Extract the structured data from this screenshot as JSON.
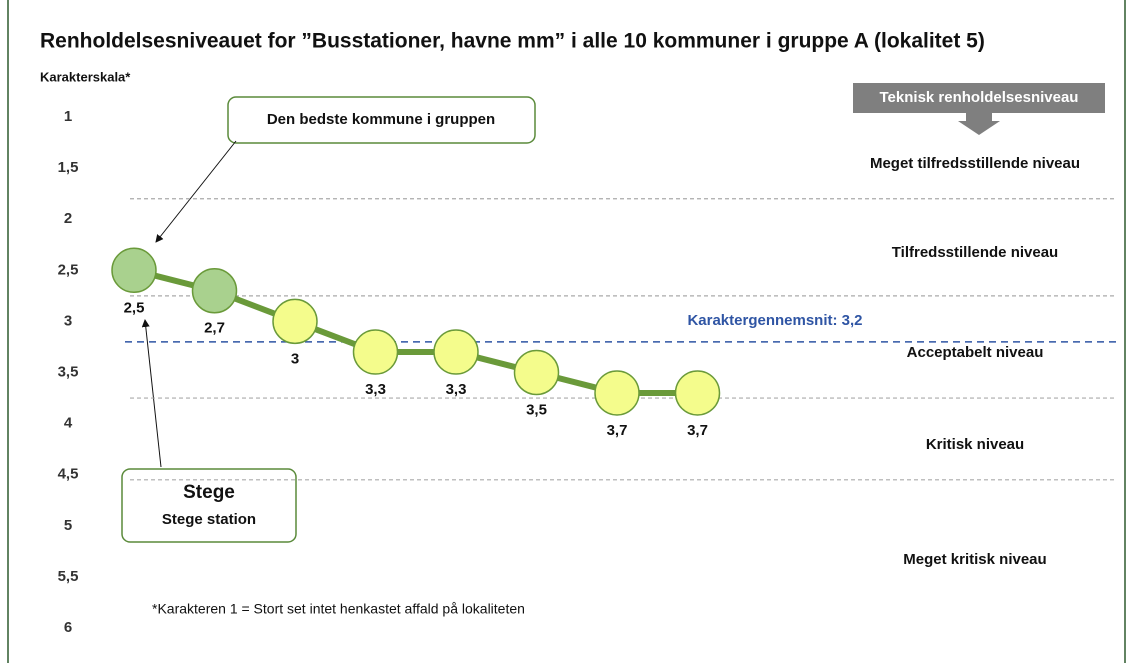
{
  "chart_data": {
    "type": "line",
    "title": "Renholdelsesniveauet for ”Busstationer, havne mm” i alle 10 kommuner i gruppe A (lokalitet 5)",
    "y_label": "Karakterskala*",
    "footnote": "*Karakteren 1 = Stort set intet henkastet affald på lokaliteten",
    "ylim": [
      1,
      6
    ],
    "y_inverted": true,
    "yticks": [
      1,
      {
        "value": 1.5,
        "label": "1,5"
      },
      2,
      {
        "value": 2.5,
        "label": "2,5"
      },
      3,
      {
        "value": 3.5,
        "label": "3,5"
      },
      4,
      {
        "value": 4.5,
        "label": "4,5"
      },
      5,
      {
        "value": 5.5,
        "label": "5,5"
      },
      6
    ],
    "categories": [
      null,
      null,
      null,
      null,
      null,
      null,
      null,
      null
    ],
    "series": [
      {
        "color": "#6a9a3a",
        "marker_colors": [
          "#a9d18e",
          "#a9d18e",
          "#f4fc8c",
          "#f4fc8c",
          "#f4fc8c",
          "#f4fc8c",
          "#f4fc8c",
          "#f4fc8c"
        ],
        "values": [
          2.5,
          2.7,
          3,
          3.3,
          3.3,
          3.5,
          3.7,
          3.7
        ],
        "value_labels": [
          "2,5",
          "2,7",
          "3",
          "3,3",
          "3,3",
          "3,5",
          "3,7",
          "3,7"
        ]
      }
    ],
    "reference_line": {
      "value": 3.2,
      "label": "Karaktergennemsnit: 3,2",
      "color": "#2f55a4"
    },
    "zone_header": "Teknisk renholdelsesniveau",
    "zone_boundaries": [
      1.8,
      2.75,
      3.75,
      4.55
    ],
    "zones": [
      "Meget tilfredsstillende niveau",
      "Tilfredsstillende niveau",
      "Acceptabelt niveau",
      "Kritisk niveau",
      "Meget kritisk niveau"
    ],
    "annotations": [
      {
        "text": "Den bedste kommune i gruppen"
      },
      {
        "title": "Stege",
        "text": "Stege station"
      }
    ]
  }
}
